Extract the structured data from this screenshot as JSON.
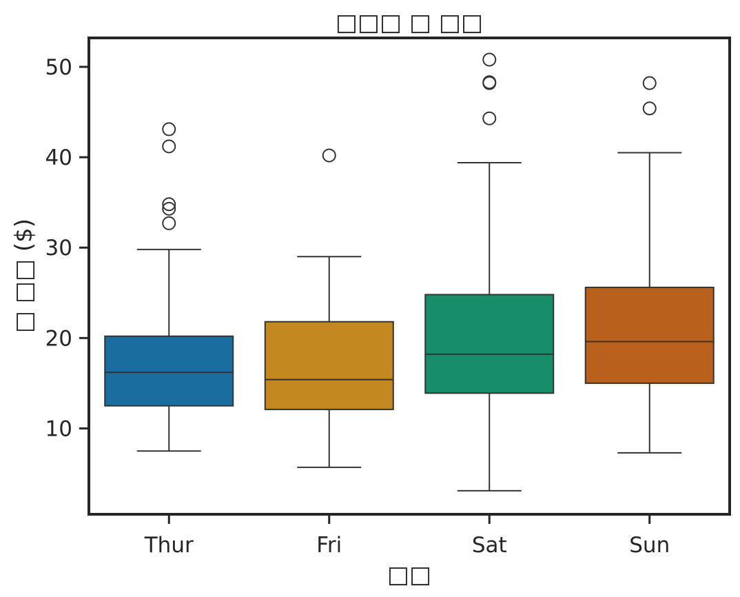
{
  "chart_data": {
    "type": "box",
    "title": "□□□ □ □□",
    "xlabel": "□□",
    "ylabel": "□ □□ ($)",
    "categories": [
      "Thur",
      "Fri",
      "Sat",
      "Sun"
    ],
    "ylim": [
      0.5,
      53.2
    ],
    "yticks": [
      10,
      20,
      30,
      40,
      50
    ],
    "grid": false,
    "boxes": [
      {
        "category": "Thur",
        "color": "#1a6e9f",
        "whisker_low": 7.5,
        "q1": 12.5,
        "median": 16.2,
        "q3": 20.2,
        "whisker_high": 29.8,
        "outliers": [
          32.7,
          34.3,
          34.8,
          41.2,
          43.1
        ]
      },
      {
        "category": "Fri",
        "color": "#c38820",
        "whisker_low": 5.7,
        "q1": 12.1,
        "median": 15.4,
        "q3": 21.8,
        "whisker_high": 29.0,
        "outliers": [
          40.2
        ]
      },
      {
        "category": "Sat",
        "color": "#178d6a",
        "whisker_low": 3.1,
        "q1": 13.9,
        "median": 18.2,
        "q3": 24.8,
        "whisker_high": 39.4,
        "outliers": [
          44.3,
          48.2,
          48.3,
          50.8
        ]
      },
      {
        "category": "Sun",
        "color": "#b9601d",
        "whisker_low": 7.3,
        "q1": 15.0,
        "median": 19.6,
        "q3": 25.6,
        "whisker_high": 40.5,
        "outliers": [
          45.4,
          48.2
        ]
      }
    ]
  }
}
